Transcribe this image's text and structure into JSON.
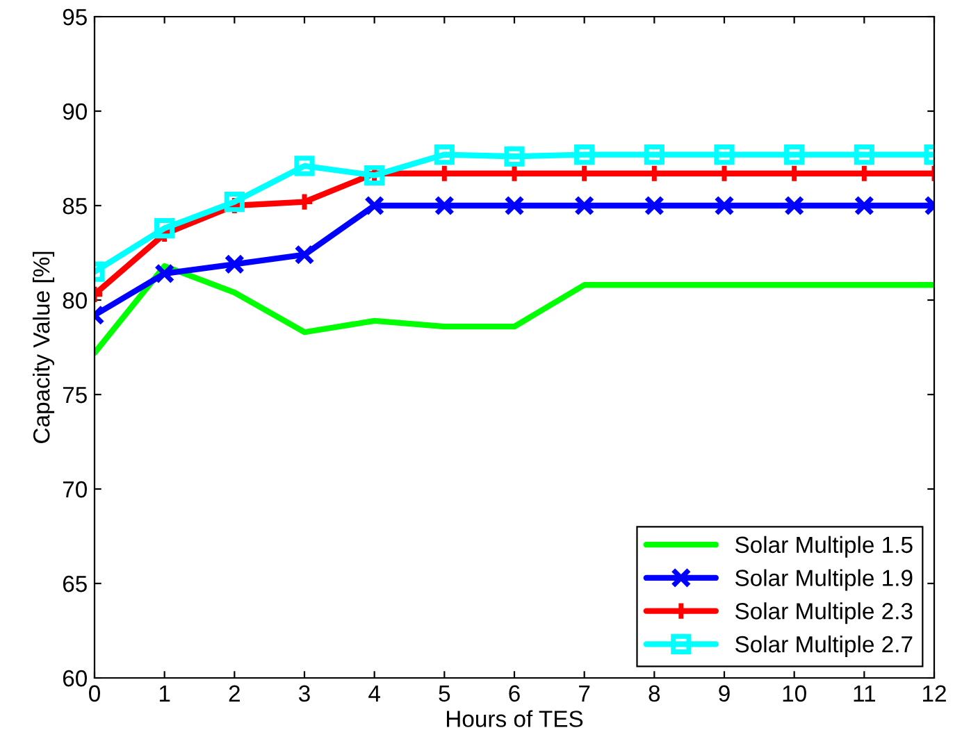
{
  "chart_data": {
    "type": "line",
    "xlabel": "Hours of TES",
    "ylabel": "Capacity Value [%]",
    "x": [
      0,
      1,
      2,
      3,
      4,
      5,
      6,
      7,
      8,
      9,
      10,
      11,
      12
    ],
    "xlim": [
      0,
      12
    ],
    "xticks": [
      0,
      1,
      2,
      3,
      4,
      5,
      6,
      7,
      8,
      9,
      10,
      11,
      12
    ],
    "ylim": [
      60,
      95
    ],
    "yticks": [
      60,
      65,
      70,
      75,
      80,
      85,
      90,
      95
    ],
    "grid": false,
    "legend": "bottom right",
    "series": [
      {
        "name": "Solar Multiple 1.5",
        "color": "#00ff00",
        "marker": "none",
        "values": [
          77.2,
          81.8,
          80.4,
          78.3,
          78.9,
          78.6,
          78.6,
          80.8,
          80.8,
          80.8,
          80.8,
          80.8,
          80.8
        ]
      },
      {
        "name": "Solar Multiple 1.9",
        "color": "#0000ff",
        "marker": "cross",
        "values": [
          79.2,
          81.4,
          81.9,
          82.4,
          85.0,
          85.0,
          85.0,
          85.0,
          85.0,
          85.0,
          85.0,
          85.0,
          85.0
        ]
      },
      {
        "name": "Solar Multiple 2.3",
        "color": "#ff0000",
        "marker": "plus",
        "values": [
          80.3,
          83.5,
          85.0,
          85.2,
          86.7,
          86.7,
          86.7,
          86.7,
          86.7,
          86.7,
          86.7,
          86.7,
          86.7
        ]
      },
      {
        "name": "Solar Multiple 2.7",
        "color": "#00ffff",
        "marker": "square",
        "values": [
          81.5,
          83.8,
          85.2,
          87.1,
          86.6,
          87.7,
          87.6,
          87.7,
          87.7,
          87.7,
          87.7,
          87.7,
          87.7
        ]
      }
    ]
  }
}
